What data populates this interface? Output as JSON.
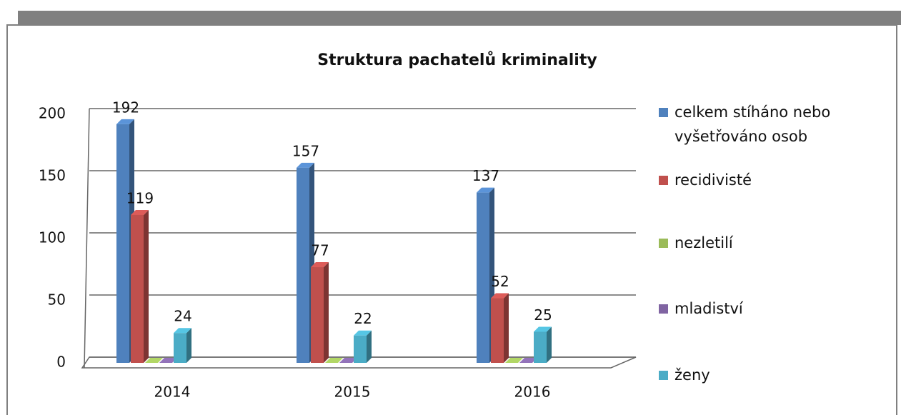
{
  "chart_data": {
    "type": "bar3d",
    "title": "Struktura pachatelů kriminality",
    "categories": [
      "2014",
      "2015",
      "2016"
    ],
    "series": [
      {
        "name": "celkem stíháno nebo vyšetřováno osob",
        "color": "#4f81bd",
        "values": [
          192,
          157,
          137
        ]
      },
      {
        "name": "recidivisté",
        "color": "#c0504d",
        "values": [
          119,
          77,
          52
        ]
      },
      {
        "name": "nezletilí",
        "color": "#9bbb59",
        "values": [
          0,
          0,
          0
        ]
      },
      {
        "name": "mladiství",
        "color": "#8064a2",
        "values": [
          0,
          0,
          0
        ]
      },
      {
        "name": "ženy",
        "color": "#4bacc6",
        "values": [
          24,
          22,
          25
        ]
      }
    ],
    "ylim": [
      0,
      200
    ],
    "yticks": [
      0,
      50,
      100,
      150,
      200
    ],
    "grid": true,
    "legend": "right"
  }
}
